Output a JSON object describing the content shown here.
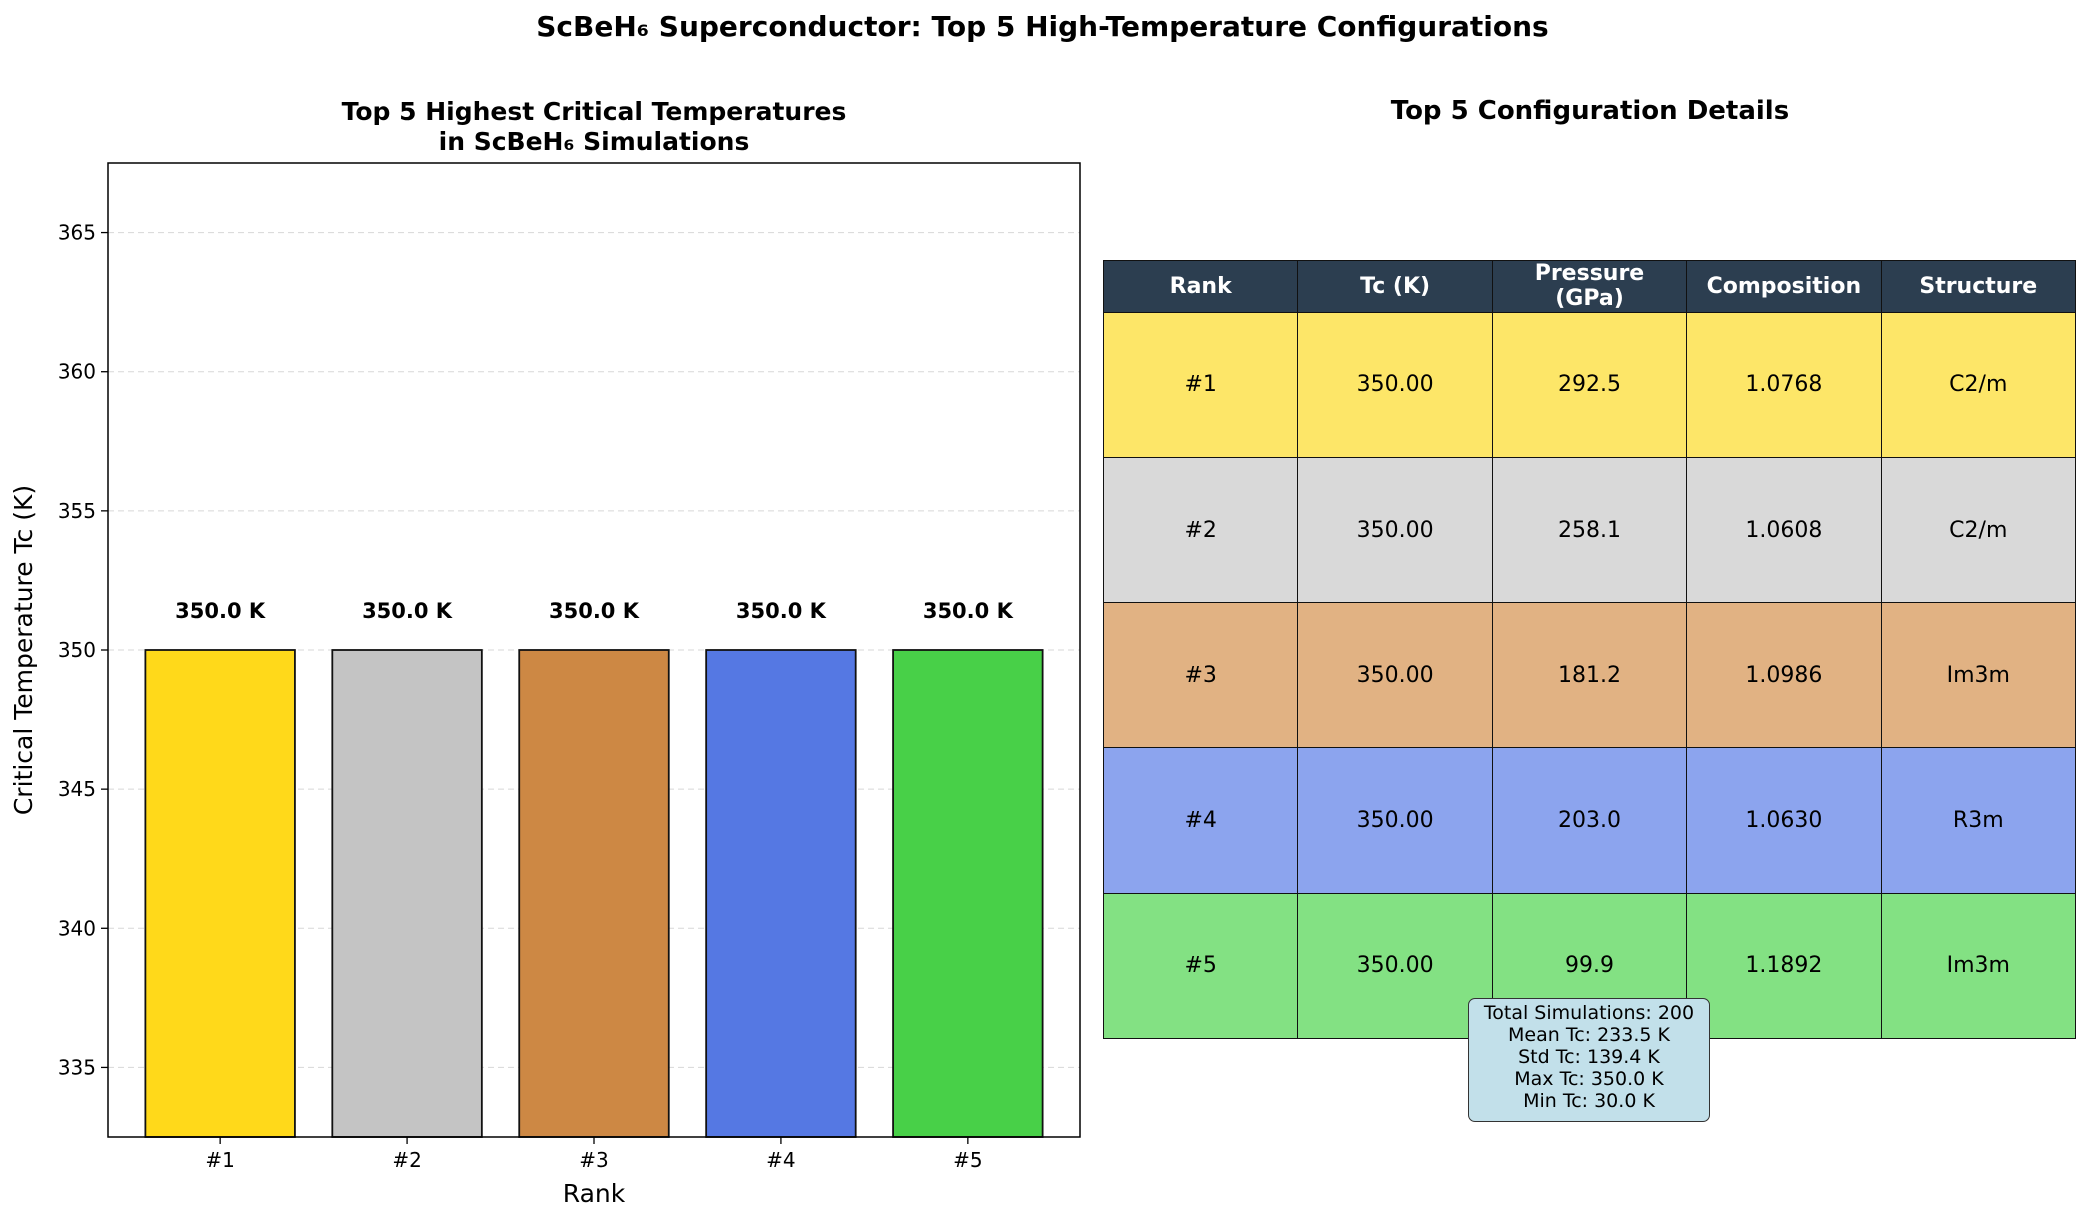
{
  "suptitle": "ScBeH₆ Superconductor: Top 5 High-Temperature Configurations",
  "chart_data": {
    "type": "bar",
    "title": "Top 5 Highest Critical Temperatures\nin ScBeH₆ Simulations",
    "xlabel": "Rank",
    "ylabel": "Critical Temperature Tc (K)",
    "categories": [
      "#1",
      "#2",
      "#3",
      "#4",
      "#5"
    ],
    "values": [
      350.0,
      350.0,
      350.0,
      350.0,
      350.0
    ],
    "data_labels": [
      "350.0 K",
      "350.0 K",
      "350.0 K",
      "350.0 K",
      "350.0 K"
    ],
    "bar_colors": [
      "#ffd91a",
      "#c4c4c4",
      "#cd8844",
      "#5578e3",
      "#48d048"
    ],
    "ylim": [
      332.5,
      367.5
    ],
    "yticks": [
      335,
      340,
      345,
      350,
      355,
      360,
      365
    ],
    "grid": "y-dashed"
  },
  "table": {
    "title": "Top 5 Configuration Details",
    "headers": [
      "Rank",
      "Tc (K)",
      "Pressure\n(GPa)",
      "Composition",
      "Structure"
    ],
    "header_color": "#2c3e50",
    "rows": [
      {
        "cells": [
          "#1",
          "350.00",
          "292.5",
          "1.0768",
          "C2/m"
        ],
        "color": "#fde668"
      },
      {
        "cells": [
          "#2",
          "350.00",
          "258.1",
          "1.0608",
          "C2/m"
        ],
        "color": "#d9d9d9"
      },
      {
        "cells": [
          "#3",
          "350.00",
          "181.2",
          "1.0986",
          "Im3m"
        ],
        "color": "#e1b283"
      },
      {
        "cells": [
          "#4",
          "350.00",
          "203.0",
          "1.0630",
          "R3m"
        ],
        "color": "#8ca4ee"
      },
      {
        "cells": [
          "#5",
          "350.00",
          "99.9",
          "1.1892",
          "Im3m"
        ],
        "color": "#83e183"
      }
    ]
  },
  "stats": {
    "lines": [
      "Total Simulations: 200",
      "Mean Tc: 233.5 K",
      "Std Tc: 139.4 K",
      "Max Tc: 350.0 K",
      "Min Tc: 30.0 K"
    ],
    "box_color": "#c2e0ea"
  }
}
